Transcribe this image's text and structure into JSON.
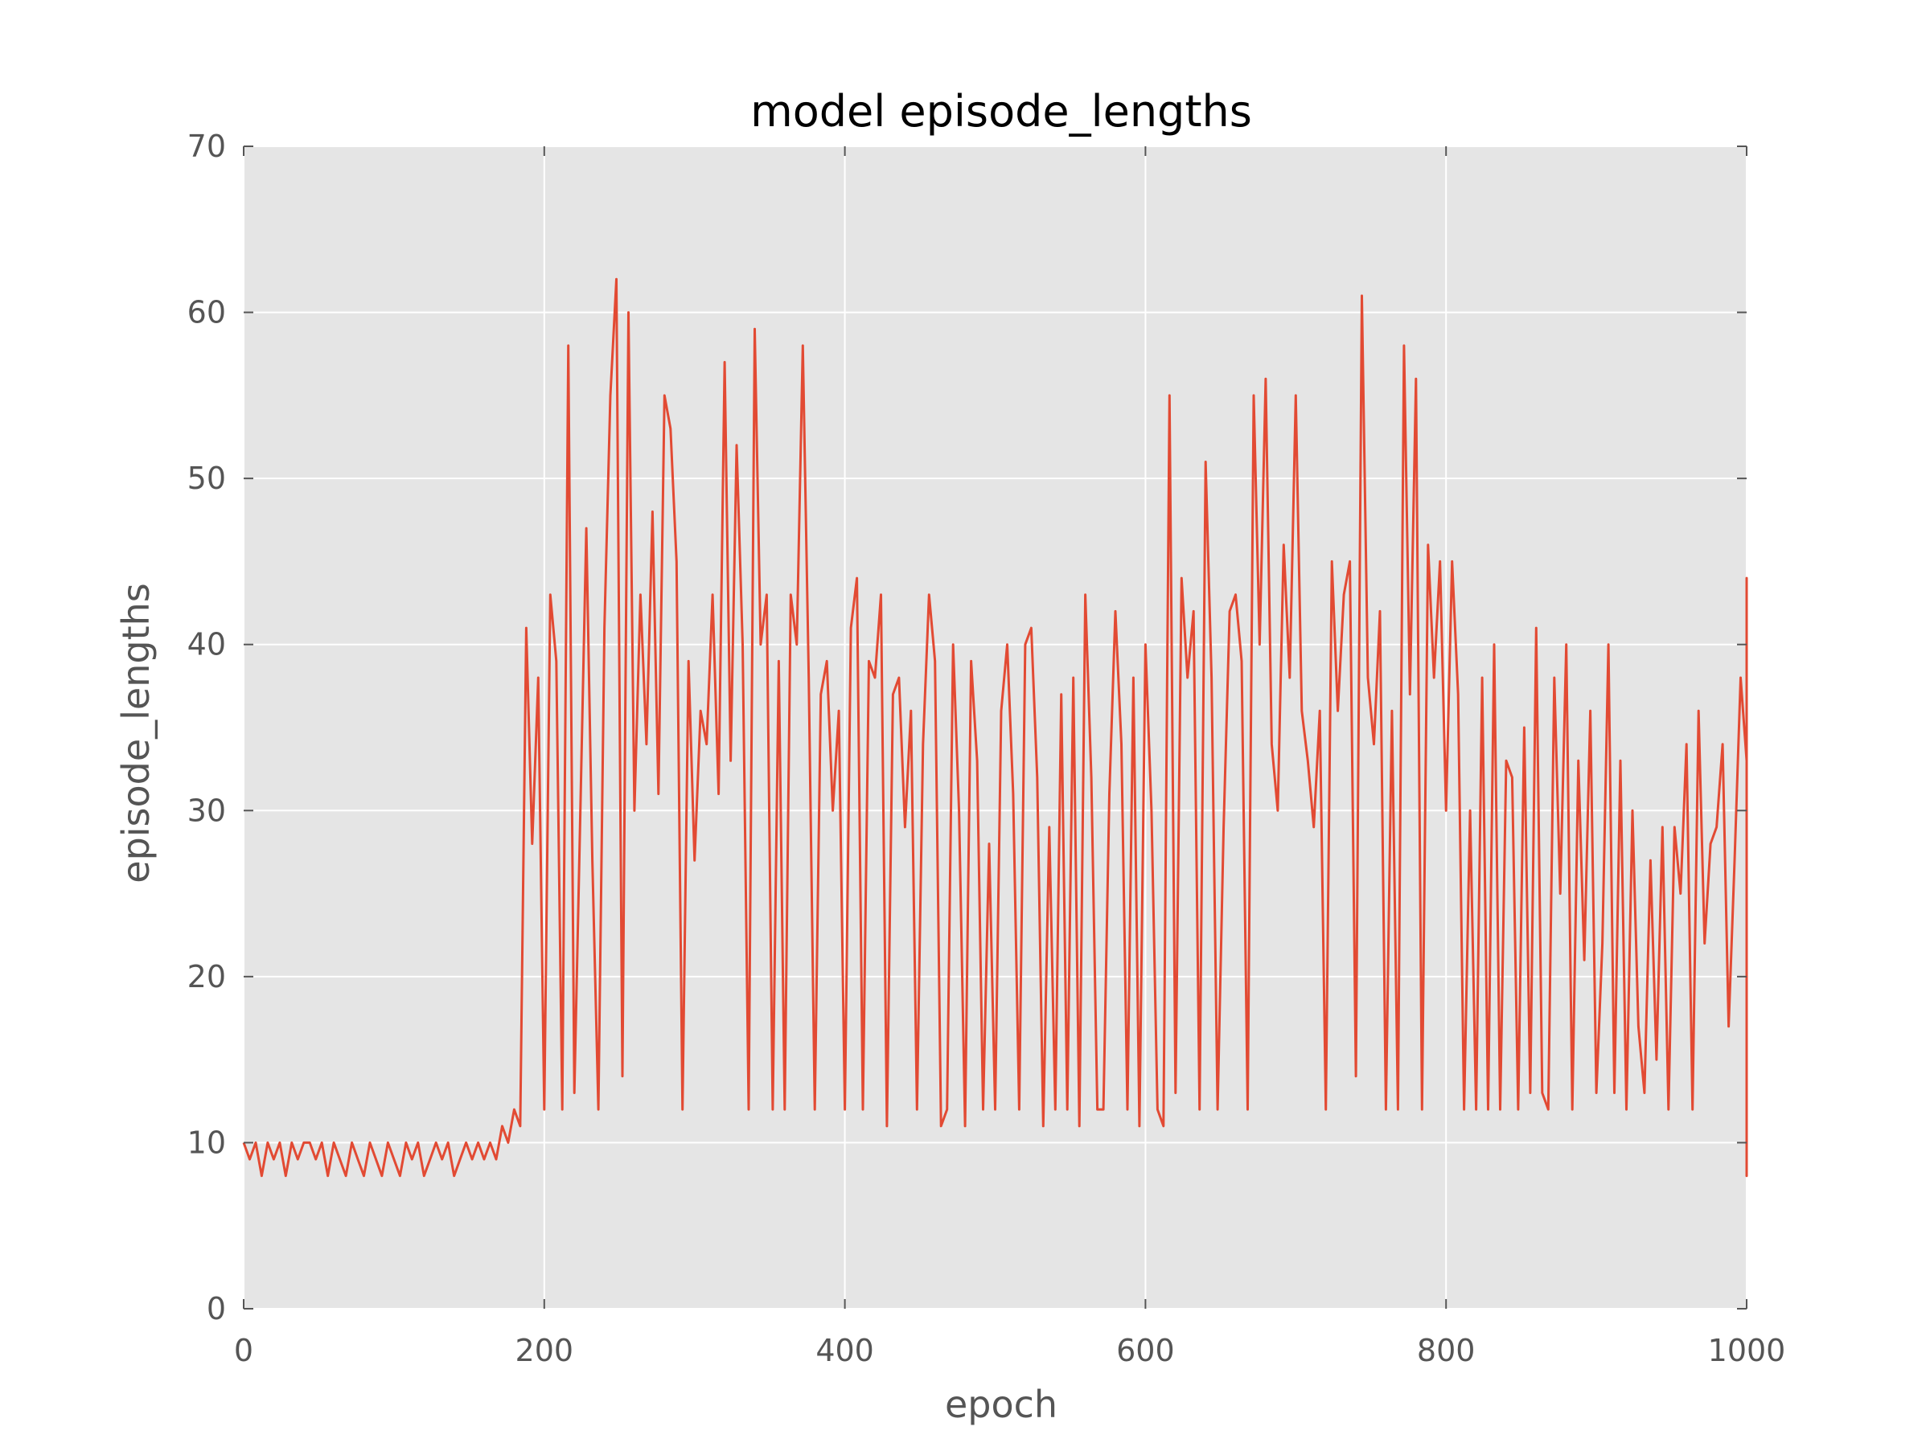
{
  "chart_data": {
    "type": "line",
    "title": "model episode_lengths",
    "xlabel": "epoch",
    "ylabel": "episode_lengths",
    "xlim": [
      0,
      1000
    ],
    "ylim": [
      0,
      70
    ],
    "x_ticks": [
      0,
      200,
      400,
      600,
      800,
      1000
    ],
    "y_ticks": [
      0,
      10,
      20,
      30,
      40,
      50,
      60,
      70
    ],
    "x_tick_labels": [
      "0",
      "200",
      "400",
      "600",
      "800",
      "1000"
    ],
    "y_tick_labels": [
      "0",
      "10",
      "20",
      "30",
      "40",
      "50",
      "60",
      "70"
    ],
    "grid": true,
    "background_color": "#e5e5e5",
    "line_color": "#e24a33",
    "series": [
      {
        "x_start": 0,
        "x_step": 4,
        "values": [
          10,
          9,
          10,
          8,
          10,
          9,
          10,
          8,
          10,
          9,
          10,
          10,
          9,
          10,
          8,
          10,
          9,
          8,
          10,
          9,
          8,
          10,
          9,
          8,
          10,
          9,
          8,
          10,
          9,
          10,
          8,
          9,
          10,
          9,
          10,
          8,
          9,
          10,
          9,
          10,
          9,
          10,
          9,
          11,
          10,
          12,
          11,
          41,
          28,
          38,
          12,
          43,
          39,
          12,
          58,
          13,
          30,
          47,
          27,
          12,
          41,
          55,
          62,
          14,
          60,
          30,
          43,
          34,
          48,
          31,
          55,
          53,
          45,
          12,
          39,
          27,
          36,
          34,
          43,
          31,
          57,
          33,
          52,
          40,
          12,
          59,
          40,
          43,
          12,
          39,
          12,
          43,
          40,
          58,
          38,
          12,
          37,
          39,
          30,
          36,
          12,
          41,
          44,
          12,
          39,
          38,
          43,
          11,
          37,
          38,
          29,
          36,
          12,
          34,
          43,
          39,
          11,
          12,
          40,
          30,
          11,
          39,
          33,
          12,
          28,
          12,
          36,
          40,
          31,
          12,
          40,
          41,
          32,
          11,
          29,
          12,
          37,
          12,
          38,
          11,
          43,
          32,
          12,
          12,
          31,
          42,
          34,
          12,
          38,
          11,
          40,
          30,
          12,
          11,
          55,
          13,
          44,
          38,
          42,
          12,
          51,
          38,
          12,
          29,
          42,
          43,
          39,
          12,
          55,
          40,
          56,
          34,
          30,
          46,
          38,
          55,
          36,
          33,
          29,
          36,
          12,
          45,
          36,
          43,
          45,
          14,
          61,
          38,
          34,
          42,
          12,
          36,
          12,
          58,
          37,
          56,
          12,
          46,
          38,
          45,
          30,
          45,
          37,
          12,
          30,
          12,
          38,
          12,
          40,
          12,
          33,
          32,
          12,
          35,
          13,
          41,
          13,
          12,
          38,
          25,
          40,
          12,
          33,
          21,
          36,
          13,
          22,
          40,
          13,
          33,
          12,
          30,
          17,
          13,
          27,
          15,
          29,
          12,
          29,
          25,
          34,
          12,
          36,
          22,
          28,
          29,
          34,
          17,
          27,
          38,
          33,
          28,
          35,
          25,
          12,
          30,
          36,
          17,
          41,
          15,
          40,
          36,
          31,
          35,
          21,
          40,
          27,
          44,
          18,
          37,
          14,
          25,
          12,
          22,
          39,
          18,
          30,
          13,
          12,
          30,
          36,
          18,
          23,
          38,
          15,
          24,
          12,
          31,
          13,
          16,
          34,
          14,
          42,
          13,
          35,
          30,
          22,
          14,
          24,
          16,
          35,
          22,
          13,
          31,
          37,
          16,
          24,
          12,
          24,
          32,
          22,
          15,
          30,
          14,
          30,
          28,
          14,
          20,
          33,
          23,
          32,
          12,
          22,
          30,
          16,
          40,
          24,
          12,
          21,
          30,
          25,
          13,
          33,
          28,
          18,
          35,
          22,
          13,
          30,
          25,
          15,
          20,
          12,
          27,
          35,
          22,
          12,
          17,
          22,
          13,
          12,
          16,
          31,
          12,
          22,
          13,
          33,
          12,
          21,
          12,
          13,
          32,
          12,
          12,
          28,
          12,
          12,
          10,
          12,
          12,
          11,
          12,
          17,
          12,
          24,
          12,
          10,
          19,
          11,
          20,
          10,
          12,
          11,
          19,
          10,
          29,
          11,
          17,
          11,
          10,
          12,
          11,
          11,
          9,
          12,
          11,
          10,
          12,
          23,
          10,
          17,
          9,
          11,
          9,
          12,
          11,
          9,
          11,
          13,
          12,
          11,
          8,
          11,
          9,
          10,
          8,
          10,
          9,
          9,
          10,
          9,
          8,
          10,
          9,
          9,
          10,
          9,
          10,
          8,
          10,
          9,
          10,
          9,
          10,
          8,
          9,
          10,
          9,
          10,
          9
        ]
      }
    ]
  }
}
